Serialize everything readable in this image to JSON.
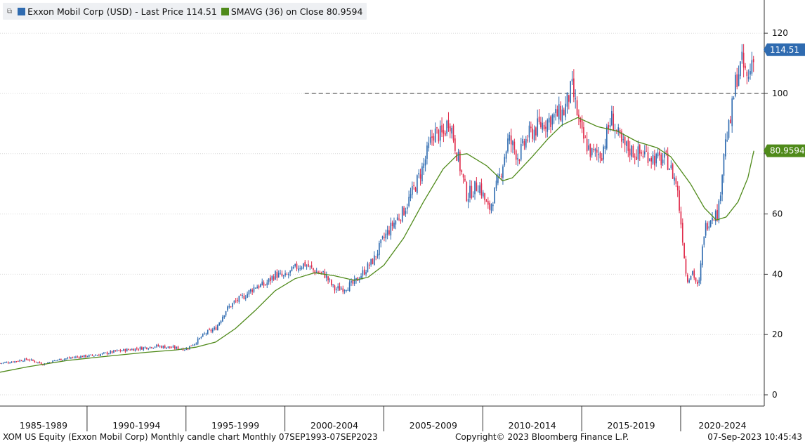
{
  "legend": {
    "series1_label": "Exxon Mobil Corp (USD) - Last Price 114.51",
    "series2_label": "SMAVG (36)  on Close 80.9594"
  },
  "tags": {
    "last_price": "114.51",
    "smavg": "80.9594"
  },
  "footer": {
    "left": "XOM US Equity (Exxon Mobil Corp) Monthly candle chart  Monthly 07SEP1993-07SEP2023",
    "center": "Copyright© 2023 Bloomberg Finance L.P.",
    "right": "07-Sep-2023 10:45:43"
  },
  "colors": {
    "up": "#2f6bb0",
    "down": "#e02a4a",
    "sma": "#4f8a1a",
    "price_tag": "#2f6bb0",
    "sma_tag": "#4f8a1a"
  },
  "chart_data": {
    "type": "candlestick",
    "title": "",
    "ylim": [
      -3,
      131
    ],
    "xlim": [
      1985.6,
      2023.8
    ],
    "y_ticks": [
      0,
      20,
      40,
      60,
      80,
      100,
      120
    ],
    "y_tick_labels": [
      "0",
      "20",
      "40",
      "60",
      "80",
      "100",
      "120"
    ],
    "x_periods": [
      "1985-1989",
      "1990-1994",
      "1995-1999",
      "2000-2004",
      "2005-2009",
      "2010-2014",
      "2015-2019",
      "2020-2024"
    ],
    "x_period_starts": [
      1985.6,
      1990,
      1995,
      2000,
      2005,
      2010,
      2015,
      2020
    ],
    "reference_line": 100,
    "grid": true,
    "legend_position": "top-left",
    "price_path": [
      [
        1985.6,
        10.5
      ],
      [
        1986.0,
        10.8
      ],
      [
        1987.0,
        11.8
      ],
      [
        1987.8,
        10.2
      ],
      [
        1988.5,
        11.6
      ],
      [
        1989.5,
        12.6
      ],
      [
        1990.5,
        13.2
      ],
      [
        1991.5,
        14.5
      ],
      [
        1992.5,
        15.3
      ],
      [
        1993.5,
        16.2
      ],
      [
        1994.5,
        15.5
      ],
      [
        1995.0,
        15.2
      ],
      [
        1995.5,
        17.5
      ],
      [
        1996.0,
        20.5
      ],
      [
        1996.5,
        22.0
      ],
      [
        1997.0,
        28.0
      ],
      [
        1997.5,
        31.0
      ],
      [
        1998.0,
        33.0
      ],
      [
        1998.5,
        36.0
      ],
      [
        1999.0,
        36.5
      ],
      [
        1999.5,
        40.0
      ],
      [
        2000.0,
        39.0
      ],
      [
        2000.5,
        42.0
      ],
      [
        2001.0,
        43.5
      ],
      [
        2001.5,
        41.0
      ],
      [
        2002.0,
        40.0
      ],
      [
        2002.5,
        35.0
      ],
      [
        2003.0,
        35.5
      ],
      [
        2003.5,
        37.0
      ],
      [
        2004.0,
        41.0
      ],
      [
        2004.5,
        45.0
      ],
      [
        2005.0,
        52.0
      ],
      [
        2005.5,
        57.0
      ],
      [
        2006.0,
        61.0
      ],
      [
        2006.5,
        68.0
      ],
      [
        2007.0,
        76.0
      ],
      [
        2007.5,
        87.0
      ],
      [
        2008.0,
        86.0
      ],
      [
        2008.3,
        92.0
      ],
      [
        2008.8,
        77.0
      ],
      [
        2009.2,
        66.0
      ],
      [
        2009.8,
        70.0
      ],
      [
        2010.3,
        61.0
      ],
      [
        2010.8,
        71.0
      ],
      [
        2011.3,
        85.0
      ],
      [
        2011.8,
        79.0
      ],
      [
        2012.3,
        86.0
      ],
      [
        2012.8,
        89.0
      ],
      [
        2013.5,
        92.0
      ],
      [
        2014.1,
        94.0
      ],
      [
        2014.5,
        102.0
      ],
      [
        2015.0,
        86.0
      ],
      [
        2015.5,
        80.0
      ],
      [
        2016.0,
        80.0
      ],
      [
        2016.5,
        92.0
      ],
      [
        2017.0,
        83.0
      ],
      [
        2017.8,
        80.0
      ],
      [
        2018.3,
        80.0
      ],
      [
        2018.8,
        78.0
      ],
      [
        2019.3,
        78.0
      ],
      [
        2019.8,
        70.0
      ],
      [
        2020.1,
        52.0
      ],
      [
        2020.3,
        38.0
      ],
      [
        2020.6,
        41.0
      ],
      [
        2020.9,
        35.0
      ],
      [
        2021.2,
        55.0
      ],
      [
        2021.6,
        60.0
      ],
      [
        2021.9,
        60.0
      ],
      [
        2022.2,
        82.0
      ],
      [
        2022.5,
        90.0
      ],
      [
        2022.8,
        105.0
      ],
      [
        2023.1,
        110.0
      ],
      [
        2023.4,
        104.0
      ],
      [
        2023.7,
        114.51
      ]
    ],
    "sma_series": {
      "name": "SMAVG (36)",
      "points": [
        [
          1985.6,
          7.5
        ],
        [
          1987.0,
          9.3
        ],
        [
          1989.0,
          11.4
        ],
        [
          1991.0,
          12.8
        ],
        [
          1993.0,
          14.1
        ],
        [
          1994.5,
          14.9
        ],
        [
          1995.5,
          15.8
        ],
        [
          1996.5,
          17.5
        ],
        [
          1997.5,
          22.0
        ],
        [
          1998.5,
          28.0
        ],
        [
          1999.5,
          34.5
        ],
        [
          2000.5,
          38.5
        ],
        [
          2001.5,
          40.5
        ],
        [
          2002.5,
          39.5
        ],
        [
          2003.5,
          38.0
        ],
        [
          2004.2,
          39.0
        ],
        [
          2005.0,
          43.0
        ],
        [
          2006.0,
          52.0
        ],
        [
          2007.0,
          64.0
        ],
        [
          2008.0,
          75.0
        ],
        [
          2008.7,
          79.5
        ],
        [
          2009.2,
          80.0
        ],
        [
          2010.2,
          76.0
        ],
        [
          2011.0,
          71.0
        ],
        [
          2011.5,
          72.0
        ],
        [
          2012.5,
          79.0
        ],
        [
          2013.3,
          85.0
        ],
        [
          2014.0,
          89.5
        ],
        [
          2014.8,
          92.0
        ],
        [
          2015.8,
          89.0
        ],
        [
          2016.8,
          87.5
        ],
        [
          2017.8,
          84.0
        ],
        [
          2018.8,
          82.0
        ],
        [
          2019.5,
          79.0
        ],
        [
          2020.5,
          70.0
        ],
        [
          2021.2,
          62.0
        ],
        [
          2021.8,
          58.0
        ],
        [
          2022.3,
          59.0
        ],
        [
          2022.9,
          64.0
        ],
        [
          2023.4,
          72.0
        ],
        [
          2023.7,
          80.9594
        ]
      ]
    },
    "last_price": 114.51,
    "sma_last": 80.9594
  }
}
